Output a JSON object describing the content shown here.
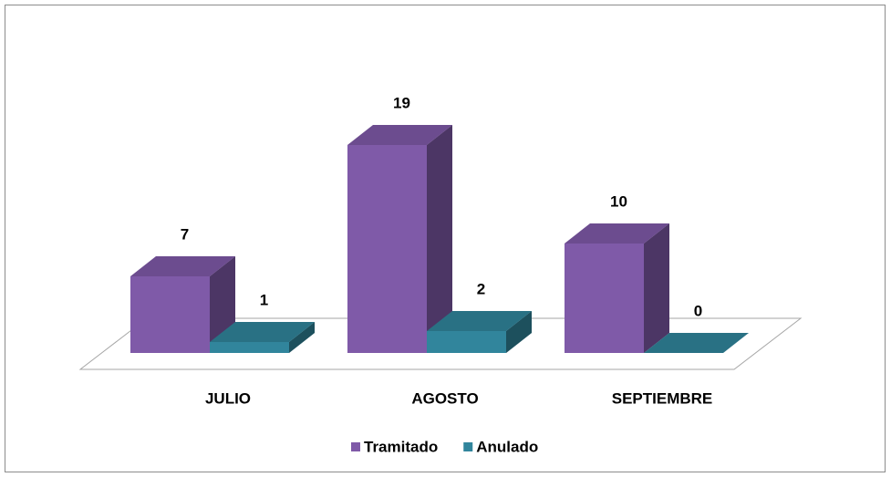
{
  "chart_data": {
    "type": "bar3d",
    "categories": [
      "JULIO",
      "AGOSTO",
      "SEPTIEMBRE"
    ],
    "series": [
      {
        "name": "Tramitado",
        "color": "#7f5aa8",
        "values": [
          7,
          19,
          10
        ]
      },
      {
        "name": "Anulado",
        "color": "#31859c",
        "values": [
          1,
          2,
          0
        ]
      }
    ],
    "legend": "bottom"
  }
}
